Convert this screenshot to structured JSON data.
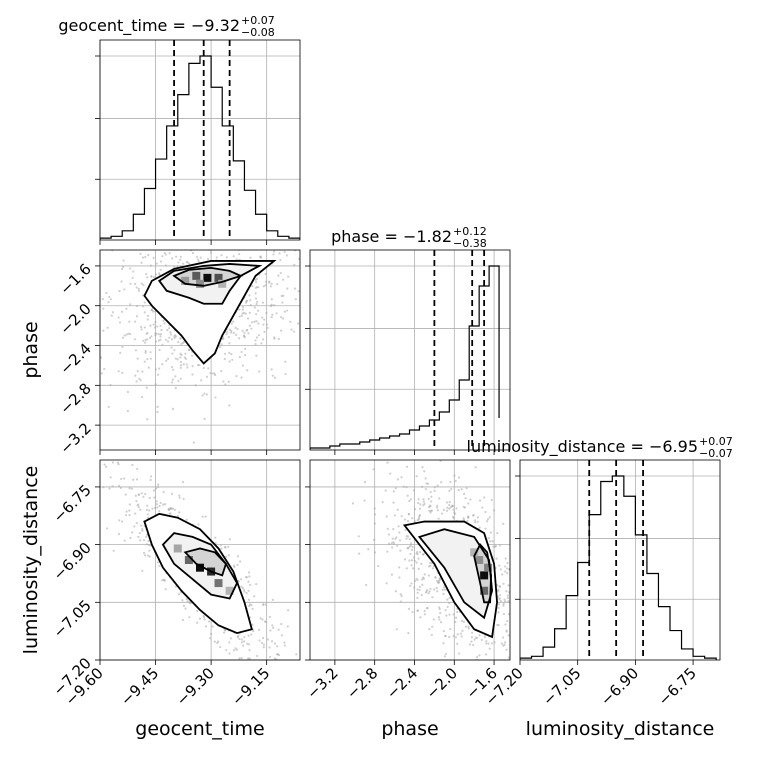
{
  "chart_data": {
    "type": "corner",
    "parameters": [
      "geocent_time",
      "phase",
      "luminosity_distance"
    ],
    "titles": [
      {
        "param": "geocent_time",
        "text": "geocent_time = −9.32",
        "sup": "+0.07",
        "sub": "−0.08"
      },
      {
        "param": "phase",
        "text": "phase = −1.82",
        "sup": "+0.12",
        "sub": "−0.38"
      },
      {
        "param": "luminosity_distance",
        "text": "luminosity_distance = −6.95",
        "sup": "+0.07",
        "sub": "−0.07"
      }
    ],
    "axis_labels": {
      "geocent_time": "geocent_time",
      "phase": "phase",
      "luminosity_distance": "luminosity_distance"
    },
    "ranges": {
      "geocent_time": [
        -9.6,
        -9.06
      ],
      "phase": [
        -3.45,
        -1.44
      ],
      "luminosity_distance": [
        -7.2,
        -6.68
      ]
    },
    "ticks": {
      "geocent_time": {
        "values": [
          -9.6,
          -9.45,
          -9.3,
          -9.15
        ],
        "labels": [
          "−9.60",
          "−9.45",
          "−9.30",
          "−9.15"
        ]
      },
      "phase": {
        "values": [
          -3.2,
          -2.8,
          -2.4,
          -2.0,
          -1.6
        ],
        "labels": [
          "−3.2",
          "−2.8",
          "−2.4",
          "−2.0",
          "−1.6"
        ]
      },
      "luminosity_distance": {
        "values": [
          -7.2,
          -7.05,
          -6.9,
          -6.75
        ],
        "labels": [
          "−7.20",
          "−7.05",
          "−6.90",
          "−6.75"
        ]
      }
    },
    "quantiles": {
      "geocent_time": [
        -9.4,
        -9.32,
        -9.25
      ],
      "phase": [
        -2.2,
        -1.82,
        -1.7
      ],
      "luminosity_distance": [
        -7.02,
        -6.95,
        -6.88
      ]
    },
    "histograms": {
      "geocent_time": {
        "edges": [
          -9.6,
          -9.57,
          -9.54,
          -9.51,
          -9.48,
          -9.45,
          -9.42,
          -9.39,
          -9.36,
          -9.33,
          -9.3,
          -9.27,
          -9.24,
          -9.21,
          -9.18,
          -9.15,
          -9.12,
          -9.09,
          -9.06
        ],
        "counts": [
          1,
          2,
          5,
          14,
          28,
          44,
          62,
          79,
          96,
          100,
          83,
          62,
          43,
          27,
          14,
          5,
          2,
          1
        ]
      },
      "phase": {
        "edges": [
          -3.45,
          -3.35,
          -3.25,
          -3.15,
          -3.05,
          -2.95,
          -2.85,
          -2.75,
          -2.65,
          -2.55,
          -2.45,
          -2.35,
          -2.25,
          -2.15,
          -2.05,
          -1.95,
          -1.85,
          -1.75,
          -1.65,
          -1.55
        ],
        "counts": [
          1,
          1,
          2,
          3,
          3,
          4,
          5,
          6,
          7,
          8,
          10,
          12,
          15,
          19,
          25,
          35,
          62,
          82,
          92,
          16
        ]
      },
      "luminosity_distance": {
        "edges": [
          -7.2,
          -7.17,
          -7.14,
          -7.11,
          -7.08,
          -7.05,
          -7.02,
          -6.99,
          -6.96,
          -6.93,
          -6.9,
          -6.87,
          -6.84,
          -6.81,
          -6.78,
          -6.75,
          -6.72,
          -6.69
        ],
        "counts": [
          1,
          2,
          7,
          17,
          35,
          53,
          79,
          97,
          100,
          89,
          68,
          47,
          29,
          16,
          6,
          2,
          1
        ]
      }
    },
    "contours": {
      "phase_vs_geocent_time": [
        [
          [
            -9.48,
            -1.9
          ],
          [
            -9.46,
            -2.0
          ],
          [
            -9.42,
            -2.15
          ],
          [
            -9.38,
            -2.3
          ],
          [
            -9.35,
            -2.45
          ],
          [
            -9.32,
            -2.58
          ],
          [
            -9.29,
            -2.48
          ],
          [
            -9.27,
            -2.3
          ],
          [
            -9.24,
            -2.1
          ],
          [
            -9.21,
            -1.9
          ],
          [
            -9.18,
            -1.7
          ],
          [
            -9.13,
            -1.55
          ],
          [
            -9.2,
            -1.55
          ],
          [
            -9.3,
            -1.55
          ],
          [
            -9.4,
            -1.63
          ],
          [
            -9.46,
            -1.75
          ]
        ],
        [
          [
            -9.44,
            -1.75
          ],
          [
            -9.42,
            -1.85
          ],
          [
            -9.36,
            -1.92
          ],
          [
            -9.32,
            -1.98
          ],
          [
            -9.27,
            -1.98
          ],
          [
            -9.25,
            -1.85
          ],
          [
            -9.22,
            -1.7
          ],
          [
            -9.17,
            -1.6
          ],
          [
            -9.25,
            -1.58
          ],
          [
            -9.32,
            -1.6
          ],
          [
            -9.4,
            -1.65
          ]
        ],
        [
          [
            -9.4,
            -1.7
          ],
          [
            -9.37,
            -1.78
          ],
          [
            -9.32,
            -1.8
          ],
          [
            -9.27,
            -1.76
          ],
          [
            -9.22,
            -1.7
          ],
          [
            -9.25,
            -1.65
          ],
          [
            -9.3,
            -1.62
          ],
          [
            -9.36,
            -1.64
          ]
        ]
      ],
      "luminosity_distance_vs_geocent_time": [
        [
          [
            -9.48,
            -6.84
          ],
          [
            -9.46,
            -6.9
          ],
          [
            -9.43,
            -6.96
          ],
          [
            -9.38,
            -7.02
          ],
          [
            -9.33,
            -7.07
          ],
          [
            -9.28,
            -7.11
          ],
          [
            -9.23,
            -7.13
          ],
          [
            -9.19,
            -7.12
          ],
          [
            -9.21,
            -7.05
          ],
          [
            -9.24,
            -6.97
          ],
          [
            -9.28,
            -6.91
          ],
          [
            -9.33,
            -6.86
          ],
          [
            -9.39,
            -6.83
          ],
          [
            -9.44,
            -6.82
          ]
        ],
        [
          [
            -9.43,
            -6.9
          ],
          [
            -9.4,
            -6.95
          ],
          [
            -9.35,
            -6.99
          ],
          [
            -9.3,
            -7.03
          ],
          [
            -9.25,
            -7.04
          ],
          [
            -9.23,
            -7.0
          ],
          [
            -9.26,
            -6.95
          ],
          [
            -9.3,
            -6.9
          ],
          [
            -9.35,
            -6.88
          ],
          [
            -9.4,
            -6.87
          ]
        ],
        [
          [
            -9.37,
            -6.92
          ],
          [
            -9.34,
            -6.95
          ],
          [
            -9.3,
            -6.97
          ],
          [
            -9.27,
            -6.98
          ],
          [
            -9.26,
            -6.95
          ],
          [
            -9.29,
            -6.92
          ],
          [
            -9.33,
            -6.91
          ]
        ]
      ],
      "luminosity_distance_vs_phase": [
        [
          [
            -2.5,
            -6.85
          ],
          [
            -2.2,
            -6.95
          ],
          [
            -2.0,
            -7.05
          ],
          [
            -1.8,
            -7.12
          ],
          [
            -1.62,
            -7.14
          ],
          [
            -1.57,
            -7.05
          ],
          [
            -1.6,
            -6.95
          ],
          [
            -1.7,
            -6.87
          ],
          [
            -1.9,
            -6.84
          ],
          [
            -2.3,
            -6.84
          ]
        ],
        [
          [
            -2.35,
            -6.88
          ],
          [
            -2.1,
            -6.96
          ],
          [
            -1.9,
            -7.05
          ],
          [
            -1.7,
            -7.09
          ],
          [
            -1.62,
            -7.02
          ],
          [
            -1.65,
            -6.94
          ],
          [
            -1.8,
            -6.88
          ],
          [
            -2.1,
            -6.86
          ]
        ],
        [
          [
            -1.8,
            -6.93
          ],
          [
            -1.74,
            -7.0
          ],
          [
            -1.7,
            -7.05
          ],
          [
            -1.64,
            -7.05
          ],
          [
            -1.63,
            -6.98
          ],
          [
            -1.67,
            -6.92
          ],
          [
            -1.74,
            -6.9
          ]
        ]
      ]
    },
    "density": {
      "phase_vs_geocent_time": [
        {
          "x": -9.34,
          "y": -1.7,
          "w": 0.65
        },
        {
          "x": -9.31,
          "y": -1.72,
          "w": 0.95
        },
        {
          "x": -9.28,
          "y": -1.72,
          "w": 0.7
        },
        {
          "x": -9.37,
          "y": -1.75,
          "w": 0.4
        },
        {
          "x": -9.33,
          "y": -1.78,
          "w": 0.45
        },
        {
          "x": -9.27,
          "y": -1.78,
          "w": 0.3
        }
      ],
      "luminosity_distance_vs_geocent_time": [
        {
          "x": -9.33,
          "y": -6.96,
          "w": 0.95
        },
        {
          "x": -9.3,
          "y": -6.97,
          "w": 0.85
        },
        {
          "x": -9.36,
          "y": -6.94,
          "w": 0.6
        },
        {
          "x": -9.28,
          "y": -7.0,
          "w": 0.55
        },
        {
          "x": -9.39,
          "y": -6.91,
          "w": 0.35
        },
        {
          "x": -9.25,
          "y": -7.02,
          "w": 0.3
        }
      ],
      "luminosity_distance_vs_phase": [
        {
          "x": -1.7,
          "y": -6.98,
          "w": 0.95
        },
        {
          "x": -1.7,
          "y": -7.02,
          "w": 0.6
        },
        {
          "x": -1.75,
          "y": -6.94,
          "w": 0.45
        },
        {
          "x": -1.66,
          "y": -6.96,
          "w": 0.5
        },
        {
          "x": -1.8,
          "y": -6.92,
          "w": 0.3
        }
      ]
    },
    "scatter_color": "#a8a8a8",
    "grid": true
  }
}
